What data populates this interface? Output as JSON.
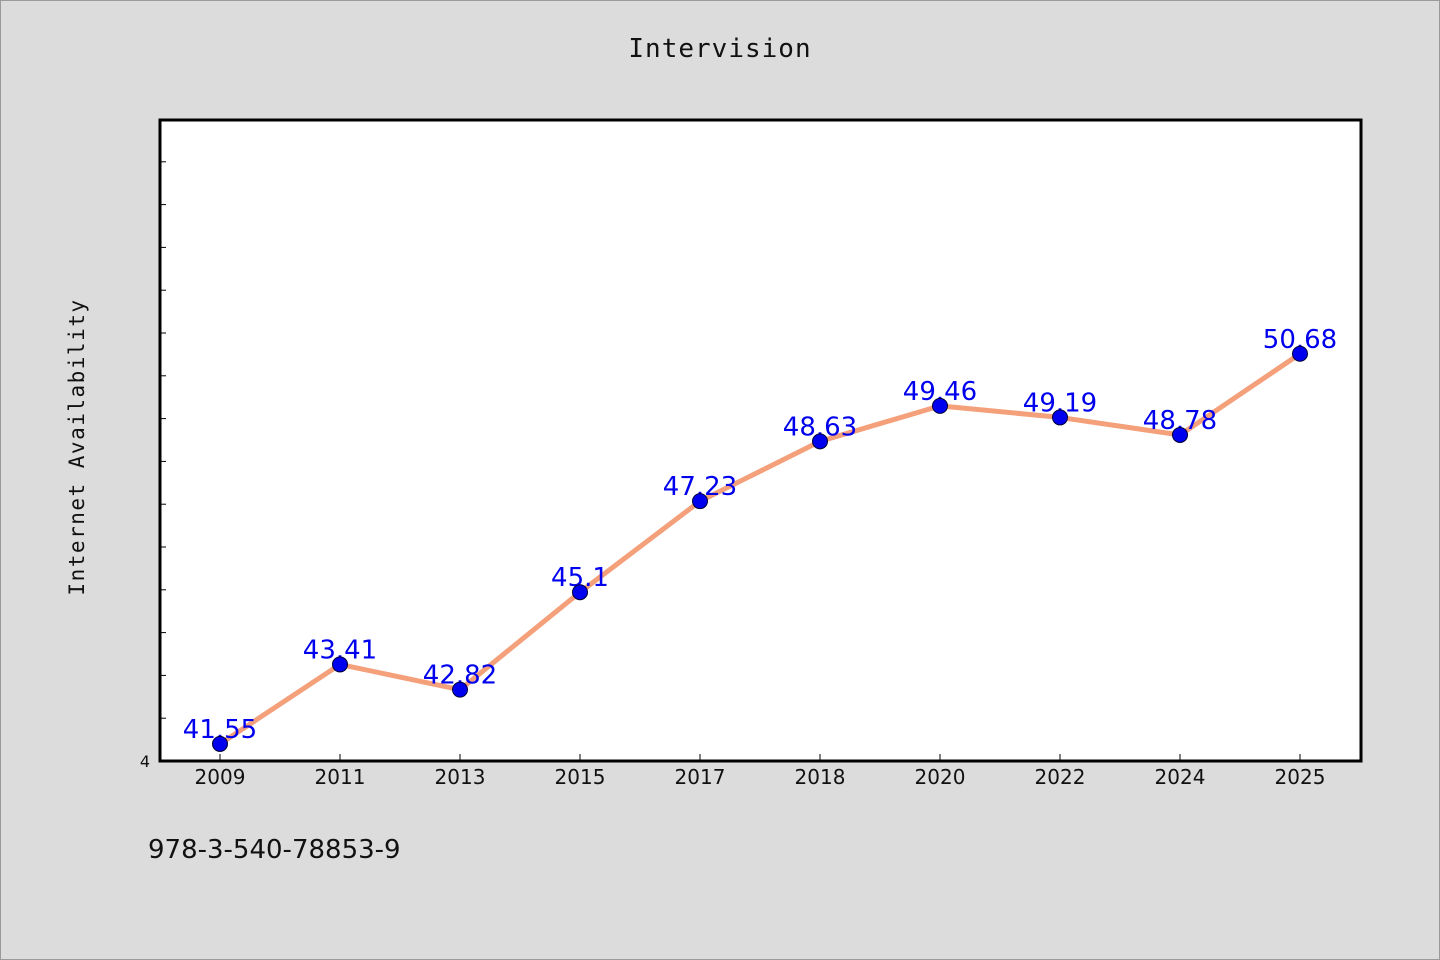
{
  "chart_data": {
    "type": "line",
    "title": "Intervision",
    "xlabel": "",
    "ylabel": "Internet Availability",
    "categories": [
      "2009",
      "2011",
      "2013",
      "2015",
      "2017",
      "2018",
      "2020",
      "2022",
      "2024",
      "2025"
    ],
    "series": [
      {
        "values": [
          41.55,
          43.41,
          42.82,
          45.1,
          47.23,
          48.63,
          49.46,
          49.19,
          48.78,
          50.68
        ],
        "labels": [
          "41.55",
          "43.41",
          "42.82",
          "45.1",
          "47.23",
          "48.63",
          "49.46",
          "49.19",
          "48.78",
          "50.68"
        ],
        "line_color": "#f4a07a",
        "marker_color": "#0000ee",
        "label_color": "#0000ee"
      }
    ],
    "ylim": [
      41.15,
      56.15
    ],
    "y_tick_label": "4",
    "grid": false,
    "legend": "none"
  },
  "footer": {
    "text": "978-3-540-78853-9"
  },
  "colors": {
    "background": "#dcdcdc",
    "plot_background": "#ffffff",
    "axis": "#000000"
  }
}
